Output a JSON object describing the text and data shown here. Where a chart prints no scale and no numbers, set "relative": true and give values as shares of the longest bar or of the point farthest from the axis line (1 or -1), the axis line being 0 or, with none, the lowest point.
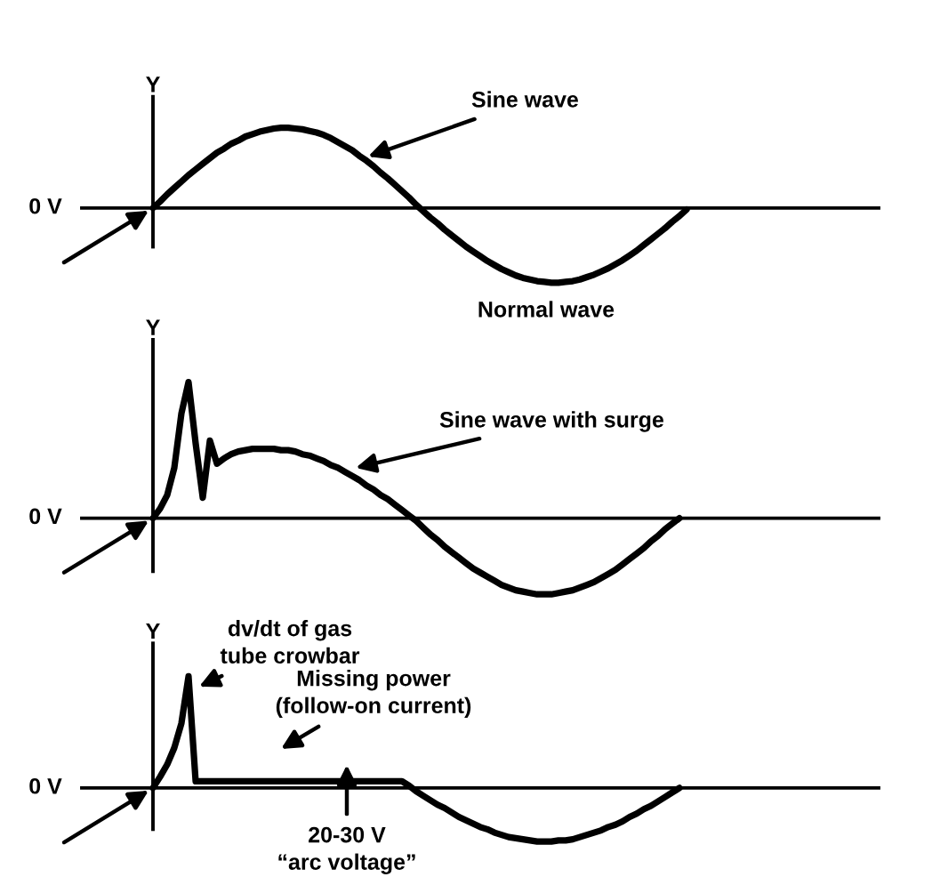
{
  "chart_data": [
    {
      "type": "line",
      "relative": true,
      "ylabel": "Y",
      "categories": [
        null,
        null,
        null,
        null,
        null,
        null,
        null,
        null,
        null,
        null,
        null,
        null,
        null,
        null,
        null,
        null,
        null,
        null,
        null,
        null,
        null,
        null,
        null,
        null,
        null,
        null,
        null,
        null,
        null,
        null,
        null,
        null,
        null,
        null,
        null,
        null,
        null,
        null,
        null,
        null,
        null,
        null,
        null,
        null,
        null,
        null,
        null,
        null,
        null,
        null,
        null,
        null,
        null,
        null,
        null,
        null,
        null,
        null,
        null,
        null,
        null,
        null,
        null,
        null,
        null,
        null,
        null,
        null,
        null,
        null,
        null,
        null,
        null,
        null,
        null,
        null,
        null,
        null,
        null,
        null,
        null,
        null,
        null,
        null,
        null,
        null,
        null,
        null,
        null,
        null,
        null,
        null,
        null,
        null,
        null,
        null,
        null,
        null,
        null,
        null,
        null,
        null,
        null,
        null,
        null,
        null,
        null,
        null,
        null,
        null,
        null,
        null,
        null
      ],
      "series": [
        {
          "color": "#000000",
          "values": [
            null,
            null,
            null,
            null,
            null,
            null,
            null,
            null,
            null,
            null,
            0,
            0.08,
            0.17,
            0.25,
            0.33,
            0.41,
            0.48,
            0.55,
            0.62,
            0.69,
            0.74,
            0.8,
            0.84,
            0.89,
            0.92,
            0.95,
            0.97,
            0.99,
            1.0,
            1.0,
            0.99,
            0.98,
            0.96,
            0.94,
            0.91,
            0.87,
            0.82,
            0.77,
            0.72,
            0.65,
            0.59,
            0.52,
            0.44,
            0.37,
            0.29,
            0.21,
            0.13,
            0.04,
            -0.04,
            -0.12,
            -0.19,
            -0.27,
            -0.34,
            -0.41,
            -0.48,
            -0.54,
            -0.6,
            -0.66,
            -0.71,
            -0.76,
            -0.8,
            -0.84,
            -0.87,
            -0.89,
            -0.91,
            -0.92,
            -0.93,
            -0.93,
            -0.92,
            -0.91,
            -0.89,
            -0.86,
            -0.83,
            -0.79,
            -0.75,
            -0.7,
            -0.65,
            -0.59,
            -0.53,
            -0.46,
            -0.39,
            -0.32,
            -0.25,
            -0.17,
            -0.1,
            -0.02,
            null,
            null,
            null,
            null,
            null,
            null,
            null,
            null,
            null,
            null,
            null,
            null,
            null,
            null,
            null,
            null,
            null,
            null,
            null,
            null,
            null,
            null,
            null,
            null,
            null,
            null,
            null
          ]
        }
      ],
      "annotations": [
        "Sine wave",
        "0 V",
        "Normal wave"
      ]
    },
    {
      "type": "line",
      "relative": true,
      "ylabel": "Y",
      "categories": [
        null,
        null,
        null,
        null,
        null,
        null,
        null,
        null,
        null,
        null,
        null,
        null,
        null,
        null,
        null,
        null,
        null,
        null,
        null,
        null,
        null,
        null,
        null,
        null,
        null,
        null,
        null,
        null,
        null,
        null,
        null,
        null,
        null,
        null,
        null,
        null,
        null,
        null,
        null,
        null,
        null,
        null,
        null,
        null,
        null,
        null,
        null,
        null,
        null,
        null,
        null,
        null,
        null,
        null,
        null,
        null,
        null,
        null,
        null,
        null,
        null,
        null,
        null,
        null,
        null,
        null,
        null,
        null,
        null,
        null,
        null,
        null,
        null,
        null,
        null,
        null,
        null,
        null,
        null,
        null,
        null,
        null,
        null,
        null,
        null,
        null,
        null,
        null,
        null,
        null,
        null,
        null,
        null,
        null,
        null,
        null,
        null,
        null,
        null,
        null,
        null,
        null,
        null,
        null,
        null,
        null,
        null,
        null,
        null,
        null,
        null,
        null,
        null
      ],
      "series": [
        {
          "color": "#000000",
          "values": [
            null,
            null,
            null,
            null,
            null,
            null,
            null,
            null,
            null,
            null,
            0,
            0.07,
            0.17,
            0.37,
            0.77,
            1.0,
            0.55,
            0.15,
            0.57,
            0.4,
            0.44,
            0.47,
            0.49,
            0.5,
            0.51,
            0.51,
            0.51,
            0.51,
            0.5,
            0.5,
            0.49,
            0.47,
            0.46,
            0.44,
            0.42,
            0.39,
            0.37,
            0.34,
            0.31,
            0.28,
            0.24,
            0.21,
            0.17,
            0.14,
            0.1,
            0.06,
            0.02,
            -0.02,
            -0.07,
            -0.12,
            -0.16,
            -0.21,
            -0.25,
            -0.29,
            -0.33,
            -0.37,
            -0.4,
            -0.43,
            -0.46,
            -0.49,
            -0.51,
            -0.53,
            -0.54,
            -0.55,
            -0.56,
            -0.56,
            -0.56,
            -0.55,
            -0.54,
            -0.53,
            -0.51,
            -0.49,
            -0.47,
            -0.44,
            -0.41,
            -0.38,
            -0.34,
            -0.3,
            -0.26,
            -0.22,
            -0.17,
            -0.13,
            -0.08,
            -0.04,
            0,
            null,
            null,
            null,
            null,
            null,
            null,
            null,
            null,
            null,
            null,
            null,
            null,
            null,
            null,
            null,
            null,
            null,
            null,
            null,
            null,
            null,
            null,
            null,
            null,
            null,
            null,
            null,
            null
          ]
        }
      ],
      "annotations": [
        "Sine wave with surge",
        "0 V"
      ]
    },
    {
      "type": "line",
      "relative": true,
      "ylabel": "Y",
      "categories": [
        null,
        null,
        null,
        null,
        null,
        null,
        null,
        null,
        null,
        null,
        null,
        null,
        null,
        null,
        null,
        null,
        null,
        null,
        null,
        null,
        null,
        null,
        null,
        null,
        null,
        null,
        null,
        null,
        null,
        null,
        null,
        null,
        null,
        null,
        null,
        null,
        null,
        null,
        null,
        null,
        null,
        null,
        null,
        null,
        null,
        null,
        null,
        null,
        null,
        null,
        null,
        null,
        null,
        null,
        null,
        null,
        null,
        null,
        null,
        null,
        null,
        null,
        null,
        null,
        null,
        null,
        null,
        null,
        null,
        null,
        null,
        null,
        null,
        null,
        null,
        null,
        null,
        null,
        null,
        null,
        null,
        null,
        null,
        null,
        null,
        null,
        null,
        null,
        null,
        null,
        null,
        null,
        null,
        null,
        null,
        null,
        null,
        null,
        null,
        null,
        null,
        null,
        null,
        null,
        null,
        null,
        null,
        null,
        null,
        null,
        null,
        null,
        null
      ],
      "series": [
        {
          "color": "#000000",
          "values": [
            null,
            null,
            null,
            null,
            null,
            null,
            null,
            null,
            null,
            null,
            0,
            0.1,
            0.21,
            0.36,
            0.58,
            1.0,
            0.06,
            0.06,
            0.06,
            0.06,
            0.06,
            0.06,
            0.06,
            0.06,
            0.06,
            0.06,
            0.06,
            0.06,
            0.06,
            0.06,
            0.06,
            0.06,
            0.06,
            0.06,
            0.06,
            0.06,
            0.06,
            0.06,
            0.06,
            0.06,
            0.06,
            0.06,
            0.06,
            0.06,
            0.06,
            0.06,
            0.02,
            -0.03,
            -0.07,
            -0.11,
            -0.15,
            -0.18,
            -0.22,
            -0.26,
            -0.29,
            -0.32,
            -0.35,
            -0.37,
            -0.4,
            -0.42,
            -0.44,
            -0.45,
            -0.46,
            -0.47,
            -0.48,
            -0.48,
            -0.48,
            -0.47,
            -0.47,
            -0.46,
            -0.44,
            -0.42,
            -0.4,
            -0.38,
            -0.35,
            -0.33,
            -0.3,
            -0.26,
            -0.23,
            -0.19,
            -0.16,
            -0.12,
            -0.08,
            -0.04,
            0,
            null,
            null,
            null,
            null,
            null,
            null,
            null,
            null,
            null,
            null,
            null,
            null,
            null,
            null,
            null,
            null,
            null,
            null,
            null,
            null,
            null,
            null,
            null,
            null,
            null,
            null,
            null,
            null
          ]
        }
      ],
      "annotations": [
        "dv/dt of gas\ntube crowbar",
        "Missing power\n(follow-on current)",
        "20-30 V\n“arc voltage”",
        "0 V"
      ]
    }
  ]
}
